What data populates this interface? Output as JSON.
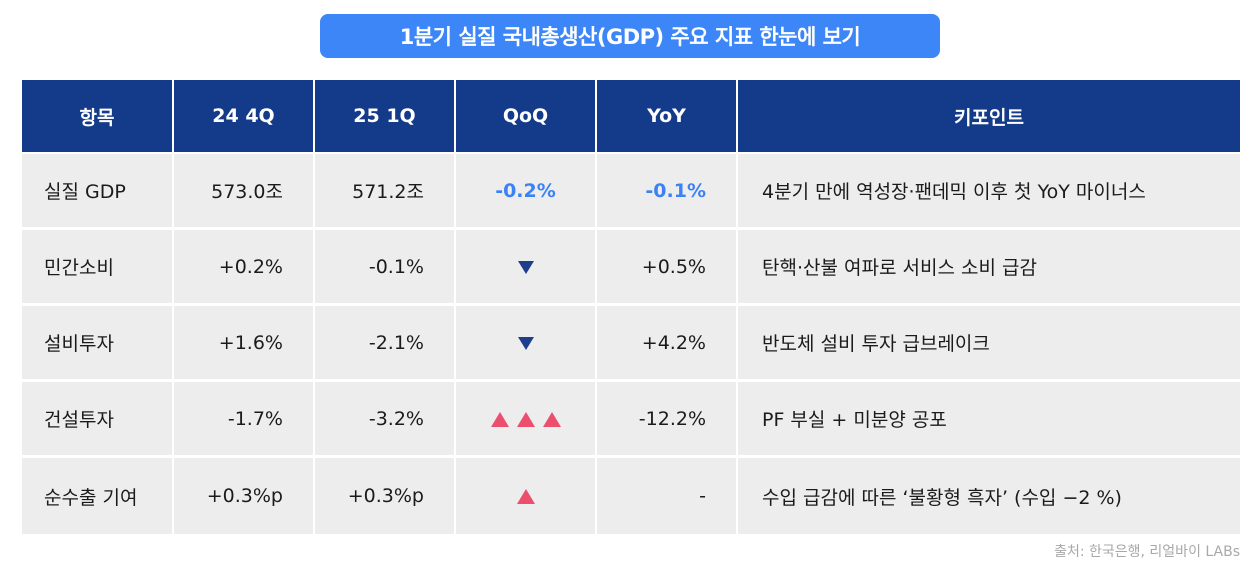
{
  "title": "1분기 실질 국내총생산(GDP) 주요 지표 한눈에 보기",
  "headers": {
    "item": "항목",
    "q4_24": "24 4Q",
    "q1_25": "25 1Q",
    "qoq": "QoQ",
    "yoy": "YoY",
    "keypoint": "키포인트"
  },
  "rows": [
    {
      "item": "실질 GDP",
      "q4_24": "573.0조",
      "q1_25": "571.2조",
      "qoq": "-0.2%",
      "qoq_icon": null,
      "yoy": "-0.1%",
      "keypoint": "4분기 만에 역성장·팬데믹 이후 첫 YoY 마이너스"
    },
    {
      "item": "민간소비",
      "q4_24": "+0.2%",
      "q1_25": "-0.1%",
      "qoq": "",
      "qoq_icon": "triangle-down",
      "yoy": "+0.5%",
      "keypoint": "탄핵·산불 여파로 서비스 소비 급감"
    },
    {
      "item": "설비투자",
      "q4_24": "+1.6%",
      "q1_25": "-2.1%",
      "qoq": "",
      "qoq_icon": "triangle-down",
      "yoy": "+4.2%",
      "keypoint": "반도체 설비 투자 급브레이크"
    },
    {
      "item": "건설투자",
      "q4_24": "-1.7%",
      "q1_25": "-3.2%",
      "qoq": "",
      "qoq_icon": "triangle-up x3",
      "yoy": "-12.2%",
      "keypoint": "PF 부실 + 미분양 공포"
    },
    {
      "item": "순수출 기여",
      "q4_24": "+0.3%p",
      "q1_25": "+0.3%p",
      "qoq": "",
      "qoq_icon": "triangle-up",
      "yoy": "-",
      "keypoint": "수입 급감에 따른 ‘불황형 흑자’ (수입 −2 %)"
    }
  ],
  "source": "출처: 한국은행, 리얼바이 LABs",
  "colors": {
    "title_bg": "#3c86f7",
    "header_bg": "#143a8a",
    "row_bg": "#ededed",
    "negative_text": "#3b82f6",
    "down_marker": "#1e3d8a",
    "up_marker": "#ec4f6e"
  }
}
